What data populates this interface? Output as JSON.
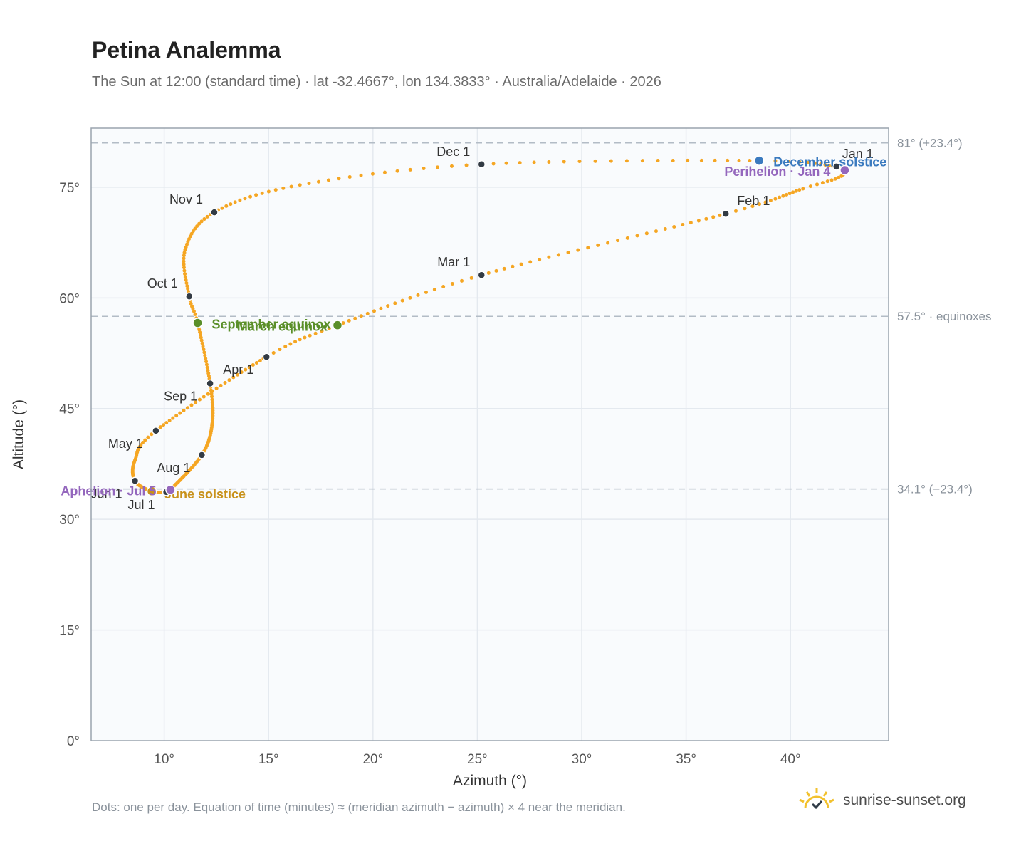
{
  "header": {
    "title": "Petina Analemma",
    "subtitle": "The Sun at 12:00 (standard time) · lat -32.4667°, lon 134.3833° · Australia/Adelaide · 2026"
  },
  "footer": {
    "note": "Dots: one per day. Equation of time (minutes) ≈ (meridian azimuth − azimuth) × 4 near the meridian.",
    "brand": "sunrise-sunset.org"
  },
  "colors": {
    "dots": "#f5a623",
    "month": "#333b44",
    "equinox": "#5a8f29",
    "december": "#3a7abf",
    "june": "#c8911a",
    "apsis": "#9467bd"
  },
  "chart_data": {
    "type": "scatter",
    "title": "Petina Analemma",
    "xlabel": "Azimuth (°)",
    "ylabel": "Altitude (°)",
    "xlim": [
      6.5,
      44.7
    ],
    "ylim": [
      0,
      83
    ],
    "x_ticks": [
      10,
      15,
      20,
      25,
      30,
      35,
      40
    ],
    "y_ticks": [
      0,
      15,
      30,
      45,
      60,
      75
    ],
    "x_tick_labels": [
      "10°",
      "15°",
      "20°",
      "25°",
      "30°",
      "35°",
      "40°"
    ],
    "y_tick_labels": [
      "0°",
      "15°",
      "30°",
      "45°",
      "60°",
      "75°"
    ],
    "grid": true,
    "reference_lines": [
      {
        "y": 81.0,
        "label": "81° (+23.4°)"
      },
      {
        "y": 57.5,
        "label": "57.5° · equinoxes"
      },
      {
        "y": 34.1,
        "label": "34.1° (−23.4°)"
      }
    ],
    "daily_path_anchors": [
      {
        "day": 1,
        "azimuth": 42.2,
        "altitude": 77.8
      },
      {
        "day": 4,
        "azimuth": 42.6,
        "altitude": 77.3
      },
      {
        "day": 10,
        "azimuth": 42.3,
        "altitude": 76.3
      },
      {
        "day": 17,
        "azimuth": 40.6,
        "altitude": 74.8
      },
      {
        "day": 32,
        "azimuth": 36.9,
        "altitude": 71.4
      },
      {
        "day": 60,
        "azimuth": 25.2,
        "altitude": 63.1
      },
      {
        "day": 79,
        "azimuth": 18.3,
        "altitude": 56.3
      },
      {
        "day": 91,
        "azimuth": 14.9,
        "altitude": 52.0
      },
      {
        "day": 121,
        "azimuth": 9.6,
        "altitude": 42.0
      },
      {
        "day": 135,
        "azimuth": 8.6,
        "altitude": 38.0
      },
      {
        "day": 152,
        "azimuth": 8.6,
        "altitude": 35.2
      },
      {
        "day": 172,
        "azimuth": 9.4,
        "altitude": 33.8
      },
      {
        "day": 182,
        "azimuth": 10.1,
        "altitude": 33.7
      },
      {
        "day": 186,
        "azimuth": 10.3,
        "altitude": 34.0
      },
      {
        "day": 213,
        "azimuth": 11.8,
        "altitude": 38.7
      },
      {
        "day": 230,
        "azimuth": 12.3,
        "altitude": 43.0
      },
      {
        "day": 244,
        "azimuth": 12.2,
        "altitude": 48.4
      },
      {
        "day": 266,
        "azimuth": 11.6,
        "altitude": 56.6
      },
      {
        "day": 274,
        "azimuth": 11.2,
        "altitude": 60.2
      },
      {
        "day": 290,
        "azimuth": 11.0,
        "altitude": 66.5
      },
      {
        "day": 305,
        "azimuth": 12.4,
        "altitude": 71.6
      },
      {
        "day": 320,
        "azimuth": 16.5,
        "altitude": 75.3
      },
      {
        "day": 335,
        "azimuth": 25.2,
        "altitude": 78.1
      },
      {
        "day": 355,
        "azimuth": 38.5,
        "altitude": 78.6
      },
      {
        "day": 365,
        "azimuth": 42.2,
        "altitude": 77.8
      }
    ],
    "month_markers": [
      {
        "label": "Jan 1",
        "azimuth": 42.2,
        "altitude": 77.8,
        "anchor": "start",
        "dx": 8,
        "dy": -12
      },
      {
        "label": "Feb 1",
        "azimuth": 36.9,
        "altitude": 71.4,
        "anchor": "start",
        "dx": 16,
        "dy": -12
      },
      {
        "label": "Mar 1",
        "azimuth": 25.2,
        "altitude": 63.1,
        "anchor": "end",
        "dx": -16,
        "dy": -12
      },
      {
        "label": "Apr 1",
        "azimuth": 14.9,
        "altitude": 52.0,
        "anchor": "end",
        "dx": -18,
        "dy": 24
      },
      {
        "label": "May 1",
        "azimuth": 9.6,
        "altitude": 42.0,
        "anchor": "end",
        "dx": -18,
        "dy": 24
      },
      {
        "label": "Jun 1",
        "azimuth": 8.6,
        "altitude": 35.2,
        "anchor": "end",
        "dx": -18,
        "dy": 24
      },
      {
        "label": "Jul 1",
        "azimuth": 10.1,
        "altitude": 33.7,
        "anchor": "end",
        "dx": -16,
        "dy": 24
      },
      {
        "label": "Aug 1",
        "azimuth": 11.8,
        "altitude": 38.7,
        "anchor": "end",
        "dx": -16,
        "dy": 24
      },
      {
        "label": "Sep 1",
        "azimuth": 12.2,
        "altitude": 48.4,
        "anchor": "end",
        "dx": -18,
        "dy": 24
      },
      {
        "label": "Oct 1",
        "azimuth": 11.2,
        "altitude": 60.2,
        "anchor": "end",
        "dx": -16,
        "dy": -12
      },
      {
        "label": "Nov 1",
        "azimuth": 12.4,
        "altitude": 71.6,
        "anchor": "end",
        "dx": -16,
        "dy": -12
      },
      {
        "label": "Dec 1",
        "azimuth": 25.2,
        "altitude": 78.1,
        "anchor": "end",
        "dx": -16,
        "dy": -12
      }
    ],
    "events": [
      {
        "label": "March equinox",
        "azimuth": 18.3,
        "altitude": 56.3,
        "color": "#5a8f29",
        "anchor": "end",
        "dx": -14,
        "dy": 8
      },
      {
        "label": "September equinox",
        "azimuth": 11.6,
        "altitude": 56.6,
        "color": "#5a8f29",
        "anchor": "start",
        "dx": 20,
        "dy": 8
      },
      {
        "label": "June solstice",
        "azimuth": 9.4,
        "altitude": 33.8,
        "color": "#c8911a",
        "anchor": "start",
        "dx": 18,
        "dy": 10
      },
      {
        "label": "December solstice",
        "azimuth": 38.5,
        "altitude": 78.6,
        "color": "#3a7abf",
        "anchor": "start",
        "dx": 20,
        "dy": 8
      },
      {
        "label": "Perihelion · Jan 4",
        "azimuth": 42.6,
        "altitude": 77.3,
        "color": "#9467bd",
        "anchor": "end",
        "dx": -20,
        "dy": 8
      },
      {
        "label": "Aphelion · Jul 5",
        "azimuth": 10.3,
        "altitude": 34.0,
        "color": "#9467bd",
        "anchor": "end",
        "dx": -20,
        "dy": 8
      }
    ]
  }
}
